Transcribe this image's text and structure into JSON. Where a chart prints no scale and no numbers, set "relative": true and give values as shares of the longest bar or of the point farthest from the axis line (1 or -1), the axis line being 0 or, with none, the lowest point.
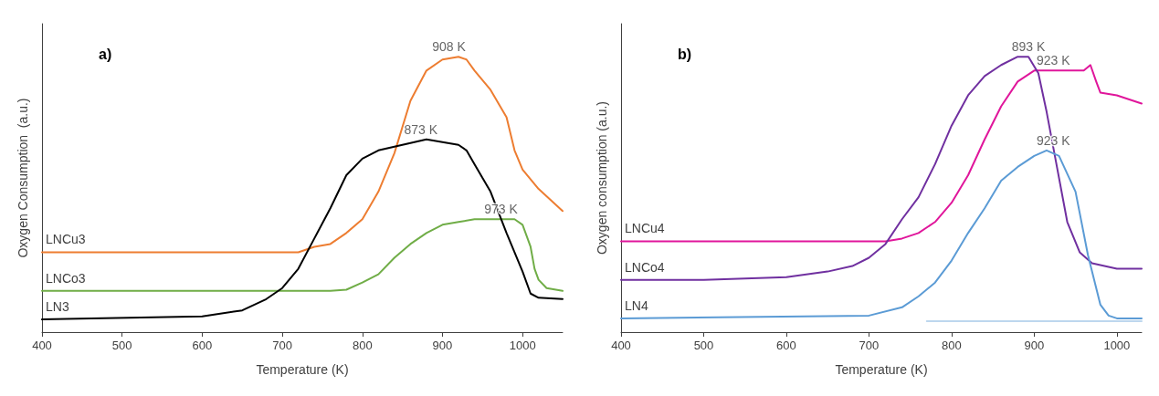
{
  "chart_data": [
    {
      "type": "line",
      "title": "a)",
      "xlabel": "Temperature (K)",
      "ylabel": "Oxygen Consumption  (a.u.)",
      "relative": true,
      "xlim": [
        400,
        1050
      ],
      "xticks": [
        400,
        500,
        600,
        700,
        800,
        900,
        1000
      ],
      "grid": false,
      "legend": false,
      "tick_labels": "x",
      "marker": "none",
      "line_style": "solid",
      "annotations": [
        {
          "text": "908 K",
          "x": 908,
          "y": 1
        },
        {
          "text": "873 K",
          "x": 873,
          "y": 0.7
        },
        {
          "text": "973 K",
          "x": 973,
          "y": 0.41
        }
      ],
      "series": [
        {
          "name": "LNCu3",
          "color": "#ed7d31",
          "x": [
            400,
            720,
            740,
            760,
            780,
            800,
            820,
            840,
            860,
            880,
            900,
            920,
            930,
            940,
            960,
            980,
            990,
            1000,
            1020,
            1050
          ],
          "values": [
            0.29,
            0.29,
            0.31,
            0.32,
            0.36,
            0.41,
            0.51,
            0.65,
            0.84,
            0.95,
            0.99,
            1,
            0.99,
            0.95,
            0.88,
            0.78,
            0.66,
            0.59,
            0.52,
            0.44
          ]
        },
        {
          "name": "LNCo3",
          "color": "#70ad47",
          "x": [
            400,
            760,
            780,
            800,
            820,
            840,
            860,
            880,
            900,
            920,
            940,
            960,
            980,
            990,
            1000,
            1010,
            1015,
            1020,
            1030,
            1050
          ],
          "values": [
            0.15,
            0.15,
            0.154,
            0.18,
            0.21,
            0.27,
            0.32,
            0.36,
            0.39,
            0.4,
            0.41,
            0.41,
            0.41,
            0.41,
            0.39,
            0.31,
            0.23,
            0.19,
            0.16,
            0.15
          ]
        },
        {
          "name": "LN3",
          "color": "#000000",
          "x": [
            400,
            600,
            650,
            680,
            700,
            720,
            740,
            760,
            780,
            800,
            820,
            850,
            880,
            900,
            920,
            930,
            940,
            960,
            980,
            1000,
            1010,
            1020,
            1050
          ],
          "values": [
            0.046,
            0.057,
            0.079,
            0.12,
            0.16,
            0.23,
            0.34,
            0.45,
            0.57,
            0.63,
            0.66,
            0.68,
            0.7,
            0.69,
            0.68,
            0.66,
            0.61,
            0.51,
            0.36,
            0.22,
            0.14,
            0.125,
            0.12
          ]
        }
      ]
    },
    {
      "type": "line",
      "title": "b)",
      "xlabel": "Temperature (K)",
      "ylabel": "Oxygen consumption (a.u.)",
      "relative": true,
      "xlim": [
        400,
        1030
      ],
      "xticks": [
        400,
        500,
        600,
        700,
        800,
        900,
        1000
      ],
      "grid": false,
      "legend": false,
      "tick_labels": "x",
      "marker": "none",
      "line_style": "solid",
      "annotations": [
        {
          "text": "893 K",
          "x": 893,
          "y": 1
        },
        {
          "text": "923 K",
          "x": 923,
          "y": 0.95
        },
        {
          "text": "923 K",
          "x": 923,
          "y": 0.66
        }
      ],
      "series": [
        {
          "name": "LNCu4",
          "color": "#e0169b",
          "x": [
            400,
            720,
            740,
            760,
            780,
            800,
            820,
            840,
            860,
            880,
            900,
            920,
            960,
            968,
            975,
            980,
            1000,
            1020,
            1030
          ],
          "values": [
            0.33,
            0.33,
            0.34,
            0.36,
            0.4,
            0.47,
            0.57,
            0.7,
            0.82,
            0.91,
            0.95,
            0.95,
            0.95,
            0.97,
            0.91,
            0.87,
            0.86,
            0.84,
            0.83
          ]
        },
        {
          "name": "LNCo4",
          "color": "#7030a0",
          "x": [
            400,
            500,
            600,
            650,
            680,
            700,
            720,
            740,
            760,
            780,
            800,
            820,
            840,
            860,
            880,
            893,
            905,
            915,
            925,
            940,
            955,
            970,
            1000,
            1030
          ],
          "values": [
            0.19,
            0.19,
            0.2,
            0.22,
            0.24,
            0.27,
            0.32,
            0.41,
            0.49,
            0.61,
            0.75,
            0.86,
            0.93,
            0.97,
            1,
            1,
            0.94,
            0.8,
            0.64,
            0.4,
            0.29,
            0.25,
            0.23,
            0.23
          ]
        },
        {
          "name": "LN4",
          "color": "#5b9bd5",
          "x": [
            400,
            700,
            740,
            760,
            780,
            800,
            820,
            840,
            860,
            880,
            900,
            915,
            930,
            950,
            965,
            980,
            990,
            1000,
            1030
          ],
          "values": [
            0.05,
            0.06,
            0.09,
            0.13,
            0.18,
            0.26,
            0.36,
            0.45,
            0.55,
            0.6,
            0.64,
            0.66,
            0.64,
            0.51,
            0.28,
            0.1,
            0.06,
            0.05,
            0.05
          ]
        },
        {
          "color": "#bdd7ee",
          "x": [
            770,
            1030
          ],
          "values": [
            0.04,
            0.04
          ]
        }
      ]
    }
  ]
}
